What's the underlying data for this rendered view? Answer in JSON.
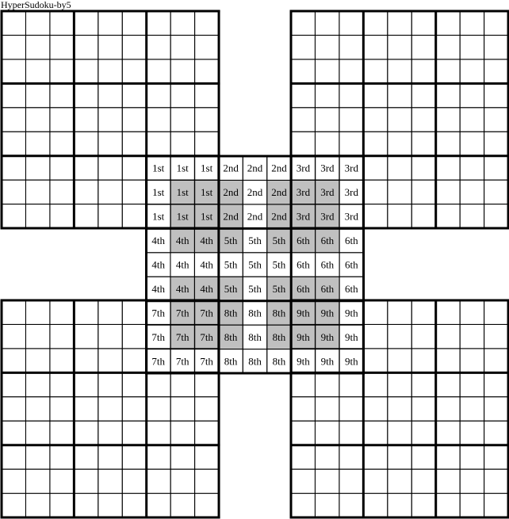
{
  "title": "HyperSudoku-by5",
  "colors": {
    "shade": "#c0c0c0",
    "line": "#000000",
    "background": "#ffffff"
  },
  "grids": [
    "top-left",
    "top-right",
    "center",
    "bottom-left",
    "bottom-right"
  ],
  "center_labels": [
    [
      "1st",
      "1st",
      "1st",
      "2nd",
      "2nd",
      "2nd",
      "3rd",
      "3rd",
      "3rd"
    ],
    [
      "1st",
      "1st",
      "1st",
      "2nd",
      "2nd",
      "2nd",
      "3rd",
      "3rd",
      "3rd"
    ],
    [
      "1st",
      "1st",
      "1st",
      "2nd",
      "2nd",
      "2nd",
      "3rd",
      "3rd",
      "3rd"
    ],
    [
      "4th",
      "4th",
      "4th",
      "5th",
      "5th",
      "5th",
      "6th",
      "6th",
      "6th"
    ],
    [
      "4th",
      "4th",
      "4th",
      "5th",
      "5th",
      "5th",
      "6th",
      "6th",
      "6th"
    ],
    [
      "4th",
      "4th",
      "4th",
      "5th",
      "5th",
      "5th",
      "6th",
      "6th",
      "6th"
    ],
    [
      "7th",
      "7th",
      "7th",
      "8th",
      "8th",
      "8th",
      "9th",
      "9th",
      "9th"
    ],
    [
      "7th",
      "7th",
      "7th",
      "8th",
      "8th",
      "8th",
      "9th",
      "9th",
      "9th"
    ],
    [
      "7th",
      "7th",
      "7th",
      "8th",
      "8th",
      "8th",
      "9th",
      "9th",
      "9th"
    ]
  ],
  "hyper_regions_center": [
    {
      "rows": [
        1,
        3
      ],
      "cols": [
        1,
        3
      ]
    },
    {
      "rows": [
        1,
        3
      ],
      "cols": [
        5,
        7
      ]
    },
    {
      "rows": [
        5,
        7
      ],
      "cols": [
        1,
        3
      ]
    },
    {
      "rows": [
        5,
        7
      ],
      "cols": [
        5,
        7
      ]
    }
  ]
}
